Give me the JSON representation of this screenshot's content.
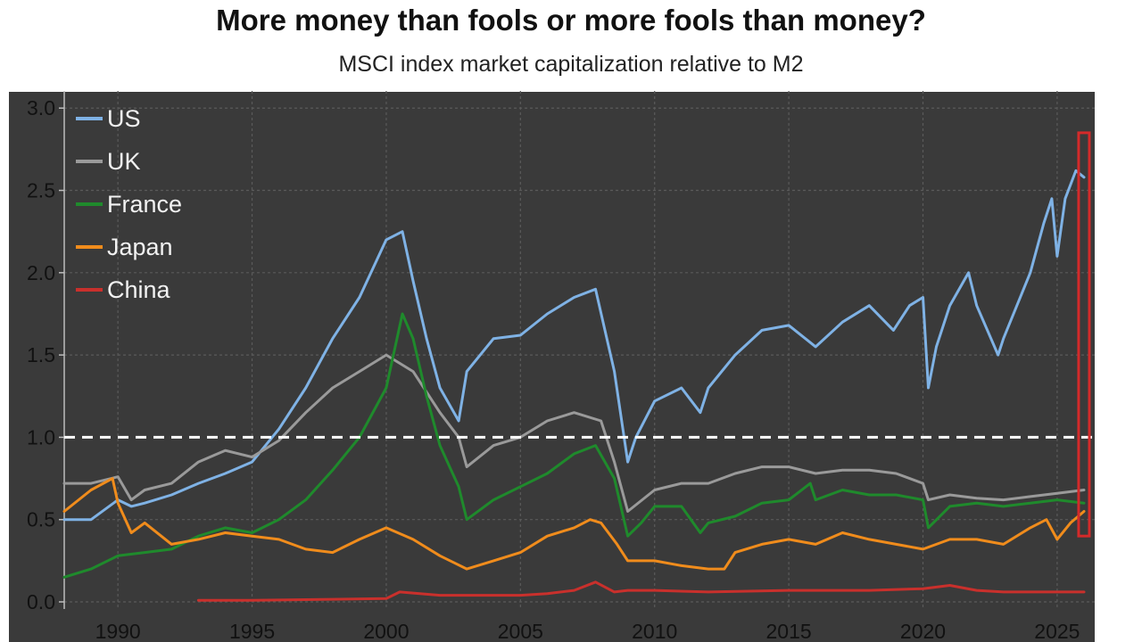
{
  "title": "More money than fools or more fools than money?",
  "subtitle": "MSCI index market capitalization relative to M2",
  "chart_data": {
    "type": "line",
    "title": "More money than fools or more fools than money?",
    "subtitle": "MSCI index market capitalization relative to M2",
    "xlabel": "",
    "ylabel": "",
    "xlim": [
      1988,
      2026.4
    ],
    "ylim": [
      0,
      3.05
    ],
    "x_ticks": [
      "1990",
      "1995",
      "2000",
      "2005",
      "2010",
      "2015",
      "2020",
      "2025"
    ],
    "y_ticks": [
      "0.0",
      "0.5",
      "1.0",
      "1.5",
      "2.0",
      "2.5",
      "3.0"
    ],
    "grid": true,
    "legend_position": "top-left",
    "background": "#3a3a3a",
    "reference_line": {
      "y": 1.0,
      "style": "dashed",
      "color": "#ffffff"
    },
    "highlight_box": {
      "x_range": [
        2025.8,
        2026.2
      ],
      "y_range": [
        0.4,
        2.85
      ],
      "color": "#d42a2a"
    },
    "series": [
      {
        "name": "US",
        "color": "#7fb2e5",
        "x": [
          1988,
          1989,
          1990,
          1990.5,
          1991,
          1992,
          1993,
          1994,
          1995,
          1996,
          1997,
          1998,
          1999,
          2000,
          2000.6,
          2001,
          2001.5,
          2002,
          2002.7,
          2003,
          2004,
          2005,
          2006,
          2007,
          2007.8,
          2008.5,
          2009,
          2009.3,
          2010,
          2011,
          2011.7,
          2012,
          2013,
          2014,
          2015,
          2016,
          2017,
          2018,
          2018.9,
          2019.5,
          2020,
          2020.2,
          2020.5,
          2021,
          2021.7,
          2022,
          2022.8,
          2023,
          2024,
          2024.5,
          2024.8,
          2025,
          2025.3,
          2025.7,
          2026
        ],
        "y": [
          0.5,
          0.5,
          0.62,
          0.58,
          0.6,
          0.65,
          0.72,
          0.78,
          0.85,
          1.05,
          1.3,
          1.6,
          1.85,
          2.2,
          2.25,
          1.95,
          1.6,
          1.3,
          1.1,
          1.4,
          1.6,
          1.62,
          1.75,
          1.85,
          1.9,
          1.4,
          0.85,
          1.0,
          1.22,
          1.3,
          1.15,
          1.3,
          1.5,
          1.65,
          1.68,
          1.55,
          1.7,
          1.8,
          1.65,
          1.8,
          1.85,
          1.3,
          1.55,
          1.8,
          2.0,
          1.8,
          1.5,
          1.6,
          2.0,
          2.3,
          2.45,
          2.1,
          2.45,
          2.62,
          2.58
        ]
      },
      {
        "name": "UK",
        "color": "#9a9a9a",
        "x": [
          1988,
          1989,
          1990,
          1990.5,
          1991,
          1992,
          1993,
          1994,
          1995,
          1996,
          1997,
          1998,
          1999,
          2000,
          2001,
          2002,
          2002.7,
          2003,
          2004,
          2005,
          2006,
          2007,
          2008,
          2008.5,
          2009,
          2010,
          2011,
          2012,
          2013,
          2014,
          2015,
          2016,
          2017,
          2018,
          2019,
          2020,
          2020.2,
          2021,
          2022,
          2023,
          2024,
          2025,
          2026
        ],
        "y": [
          0.72,
          0.72,
          0.76,
          0.62,
          0.68,
          0.72,
          0.85,
          0.92,
          0.88,
          0.98,
          1.15,
          1.3,
          1.4,
          1.5,
          1.4,
          1.15,
          1.0,
          0.82,
          0.95,
          1.0,
          1.1,
          1.15,
          1.1,
          0.85,
          0.55,
          0.68,
          0.72,
          0.72,
          0.78,
          0.82,
          0.82,
          0.78,
          0.8,
          0.8,
          0.78,
          0.72,
          0.62,
          0.65,
          0.63,
          0.62,
          0.64,
          0.66,
          0.68
        ]
      },
      {
        "name": "France",
        "color": "#1f8a2c",
        "x": [
          1988,
          1989,
          1990,
          1991,
          1992,
          1993,
          1994,
          1995,
          1996,
          1997,
          1998,
          1999,
          2000,
          2000.6,
          2001,
          2001.5,
          2002,
          2002.7,
          2003,
          2004,
          2005,
          2006,
          2007,
          2007.8,
          2008.5,
          2009,
          2009.5,
          2010,
          2011,
          2011.7,
          2012,
          2013,
          2014,
          2015,
          2015.8,
          2016,
          2017,
          2018,
          2019,
          2020,
          2020.2,
          2021,
          2022,
          2023,
          2024,
          2025,
          2026
        ],
        "y": [
          0.15,
          0.2,
          0.28,
          0.3,
          0.32,
          0.4,
          0.45,
          0.42,
          0.5,
          0.62,
          0.8,
          1.0,
          1.3,
          1.75,
          1.6,
          1.25,
          0.95,
          0.7,
          0.5,
          0.62,
          0.7,
          0.78,
          0.9,
          0.95,
          0.75,
          0.4,
          0.48,
          0.58,
          0.58,
          0.42,
          0.48,
          0.52,
          0.6,
          0.62,
          0.72,
          0.62,
          0.68,
          0.65,
          0.65,
          0.62,
          0.45,
          0.58,
          0.6,
          0.58,
          0.6,
          0.62,
          0.6
        ]
      },
      {
        "name": "Japan",
        "color": "#f08c1c",
        "x": [
          1988,
          1989,
          1989.8,
          1990,
          1990.5,
          1991,
          1992,
          1993,
          1994,
          1995,
          1996,
          1997,
          1998,
          1999,
          2000,
          2001,
          2002,
          2003,
          2004,
          2005,
          2006,
          2007,
          2007.6,
          2008,
          2008.6,
          2009,
          2010,
          2011,
          2012,
          2012.6,
          2013,
          2014,
          2015,
          2016,
          2017,
          2018,
          2019,
          2020,
          2021,
          2022,
          2023,
          2024,
          2024.6,
          2025,
          2025.5,
          2026
        ],
        "y": [
          0.55,
          0.68,
          0.75,
          0.6,
          0.42,
          0.48,
          0.35,
          0.38,
          0.42,
          0.4,
          0.38,
          0.32,
          0.3,
          0.38,
          0.45,
          0.38,
          0.28,
          0.2,
          0.25,
          0.3,
          0.4,
          0.45,
          0.5,
          0.48,
          0.35,
          0.25,
          0.25,
          0.22,
          0.2,
          0.2,
          0.3,
          0.35,
          0.38,
          0.35,
          0.42,
          0.38,
          0.35,
          0.32,
          0.38,
          0.38,
          0.35,
          0.45,
          0.5,
          0.38,
          0.48,
          0.55
        ]
      },
      {
        "name": "China",
        "color": "#c9302c",
        "x": [
          1993,
          1995,
          2000,
          2000.5,
          2002,
          2005,
          2006,
          2007,
          2007.8,
          2008.5,
          2009,
          2010,
          2012,
          2015,
          2018,
          2020,
          2021,
          2022,
          2023,
          2024,
          2025,
          2026
        ],
        "y": [
          0.01,
          0.01,
          0.02,
          0.06,
          0.04,
          0.04,
          0.05,
          0.07,
          0.12,
          0.06,
          0.07,
          0.07,
          0.06,
          0.07,
          0.07,
          0.08,
          0.1,
          0.07,
          0.06,
          0.06,
          0.06,
          0.06
        ]
      }
    ]
  }
}
